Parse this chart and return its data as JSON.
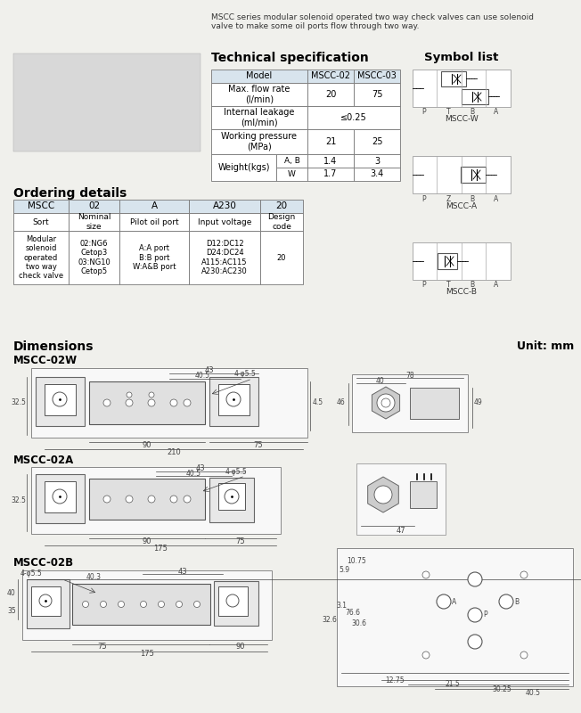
{
  "bg_color": "#f0f0ec",
  "title_text": "MSCC series modular solenoid operated two way check valves can use solenoid\nvalve to make some oil ports flow through two way.",
  "tech_spec_title": "Technical specification",
  "symbol_list_title": "Symbol list",
  "ordering_title": "Ordering details",
  "ordering_header": [
    "MSCC",
    "02",
    "A",
    "A230",
    "20"
  ],
  "ordering_row1": [
    "Sort",
    "Nominal\nsize",
    "Pilot oil port",
    "Input voltage",
    "Design\ncode"
  ],
  "ordering_row2": [
    "Modular\nsolenoid\noperated\ntwo way\ncheck valve",
    "02:NG6\nCetop3\n03:NG10\nCetop5",
    "A:A port\nB:B port\nW:A&B port",
    "D12:DC12\nD24:DC24\nA115:AC115\nA230:AC230",
    "20"
  ],
  "dimensions_title": "Dimensions",
  "unit_text": "Unit: mm",
  "mscc02w_label": "MSCC-02W",
  "mscc02a_label": "MSCC-02A",
  "mscc02b_label": "MSCC-02B",
  "symbol_labels": [
    "MSCC-W",
    "MSCC-A",
    "MSCC-B"
  ],
  "port_labels_W": [
    "P",
    "T",
    "B",
    "A"
  ],
  "port_labels_A": [
    "P",
    "Z",
    "B",
    "A"
  ],
  "port_labels_B": [
    "P",
    "T",
    "B",
    "A"
  ]
}
